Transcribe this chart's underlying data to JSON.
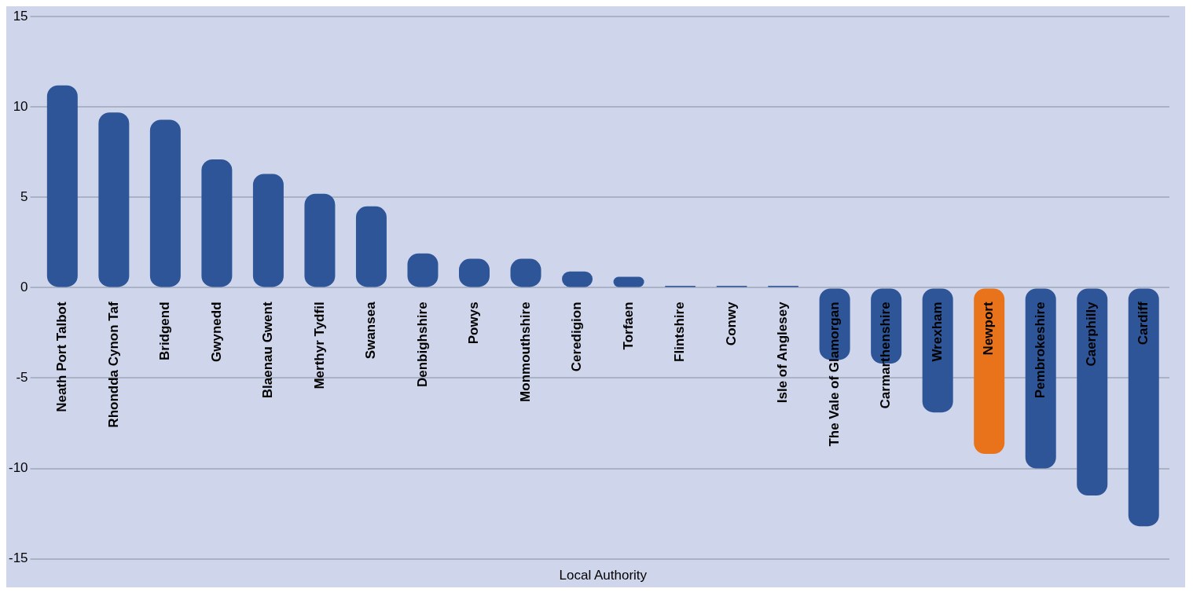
{
  "chart_data": {
    "type": "bar",
    "xlabel": "Local Authority",
    "categories": [
      "Neath Port Talbot",
      "Rhondda Cynon Taf",
      "Bridgend",
      "Gwynedd",
      "Blaenau Gwent",
      "Merthyr Tydfil",
      "Swansea",
      "Denbighshire",
      "Powys",
      "Monmouthshire",
      "Ceredigion",
      "Torfaen",
      "Flintshire",
      "Conwy",
      "Isle of Anglesey",
      "The Vale of Glamorgan",
      "Carmarthenshire",
      "Wrexham",
      "Newport",
      "Pembrokeshire",
      "Caerphilly",
      "Cardiff"
    ],
    "values": [
      11.2,
      9.7,
      9.3,
      7.1,
      6.3,
      5.2,
      4.5,
      1.9,
      1.6,
      1.6,
      0.9,
      0.6,
      0.1,
      0.1,
      0.1,
      -4.0,
      -4.2,
      -6.9,
      -9.2,
      -10.0,
      -11.5,
      -13.2
    ],
    "colors": [
      "#2e5597",
      "#2e5597",
      "#2e5597",
      "#2e5597",
      "#2e5597",
      "#2e5597",
      "#2e5597",
      "#2e5597",
      "#2e5597",
      "#2e5597",
      "#2e5597",
      "#2e5597",
      "#2e5597",
      "#2e5597",
      "#2e5597",
      "#2e5597",
      "#2e5597",
      "#2e5597",
      "#e8731a",
      "#2e5597",
      "#2e5597",
      "#2e5597"
    ],
    "ylim": [
      -15,
      15
    ],
    "yticks": [
      -15,
      -10,
      -5,
      0,
      5,
      10,
      15
    ],
    "grid": "y",
    "legend": false
  }
}
